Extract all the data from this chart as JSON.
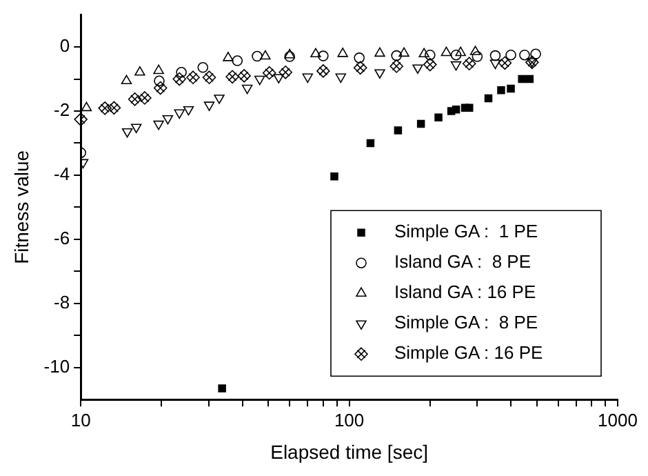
{
  "chart_data": {
    "type": "scatter",
    "xlabel": "Elapsed time [sec]",
    "ylabel": "Fitness value",
    "log": "x",
    "grid": false,
    "legend": "bottom right",
    "xlim": [
      10,
      1000
    ],
    "xticks": [
      10,
      {
        "value": 20,
        "label": null
      },
      {
        "value": 30,
        "label": null
      },
      {
        "value": 40,
        "label": null
      },
      {
        "value": 50,
        "label": null
      },
      {
        "value": 60,
        "label": null
      },
      {
        "value": 70,
        "label": null
      },
      {
        "value": 80,
        "label": null
      },
      {
        "value": 90,
        "label": null
      },
      100,
      {
        "value": 200,
        "label": null
      },
      {
        "value": 300,
        "label": null
      },
      {
        "value": 400,
        "label": null
      },
      {
        "value": 500,
        "label": null
      },
      {
        "value": 600,
        "label": null
      },
      {
        "value": 700,
        "label": null
      },
      {
        "value": 800,
        "label": null
      },
      {
        "value": 900,
        "label": null
      },
      1000
    ],
    "ylim": [
      -11,
      1
    ],
    "yticks": [
      -10,
      {
        "value": -9,
        "label": null
      },
      -8,
      {
        "value": -7,
        "label": null
      },
      -6,
      {
        "value": -5,
        "label": null
      },
      -4,
      {
        "value": -3,
        "label": null
      },
      -2,
      {
        "value": -1,
        "label": null
      },
      0
    ],
    "series": [
      {
        "name": "Simple GA :  1 PE",
        "color": "#000000",
        "marker": "square",
        "x": [
          33.6,
          88,
          120,
          152,
          185,
          215,
          240,
          250,
          270,
          280,
          330,
          368,
          400,
          440,
          470
        ],
        "values": [
          -10.65,
          -4.04,
          -3,
          -2.6,
          -2.4,
          -2.2,
          -2,
          -1.95,
          -1.9,
          -1.9,
          -1.6,
          -1.35,
          -1.3,
          -1,
          -1
        ]
      },
      {
        "name": "Island GA :  8 PE",
        "color": "#000000",
        "marker": "circle",
        "x": [
          10,
          19.6,
          23.7,
          28.5,
          38.3,
          45.4,
          60,
          80,
          109,
          150,
          200,
          250,
          300,
          350,
          400,
          450,
          495
        ],
        "values": [
          -3.3,
          -1.06,
          -0.79,
          -0.64,
          -0.43,
          -0.29,
          -0.3,
          -0.28,
          -0.34,
          -0.27,
          -0.25,
          -0.25,
          -0.3,
          -0.27,
          -0.25,
          -0.25,
          -0.22
        ]
      },
      {
        "name": "Island GA : 16 PE",
        "color": "#000000",
        "marker": "triangle",
        "x": [
          10.5,
          14.8,
          16.6,
          19.5,
          35.4,
          48.7,
          60,
          75,
          94.6,
          130,
          160,
          190,
          230,
          260,
          295
        ],
        "values": [
          -1.9,
          -1.06,
          -0.79,
          -0.74,
          -0.34,
          -0.29,
          -0.25,
          -0.22,
          -0.21,
          -0.2,
          -0.2,
          -0.22,
          -0.18,
          -0.18,
          -0.15
        ]
      },
      {
        "name": "Simple GA :  8 PE",
        "color": "#000000",
        "marker": "triangle_down",
        "x": [
          10.2,
          14.9,
          16.1,
          19.5,
          21.1,
          23.3,
          25.2,
          30.1,
          32.8,
          41.7,
          46.4,
          54.6,
          70,
          93,
          130,
          180,
          250,
          350,
          480
        ],
        "values": [
          -3.6,
          -2.64,
          -2.5,
          -2.4,
          -2.23,
          -2.05,
          -1.95,
          -1.81,
          -1.59,
          -1.28,
          -1,
          -0.95,
          -0.93,
          -0.93,
          -0.8,
          -0.65,
          -0.55,
          -0.5,
          -0.45
        ]
      },
      {
        "name": "Simple GA : 16 PE",
        "color": "#000000",
        "marker": "diamond",
        "x": [
          10,
          12.3,
          13.3,
          15.9,
          17.3,
          19.8,
          23.3,
          26.2,
          30.1,
          36.7,
          40.6,
          50.4,
          57.9,
          80,
          110,
          150,
          200,
          280,
          380,
          480
        ],
        "values": [
          -2.26,
          -1.91,
          -1.9,
          -1.63,
          -1.59,
          -1.28,
          -1,
          -0.95,
          -0.95,
          -0.93,
          -0.9,
          -0.81,
          -0.79,
          -0.75,
          -0.65,
          -0.6,
          -0.55,
          -0.52,
          -0.5,
          -0.48
        ]
      }
    ]
  }
}
